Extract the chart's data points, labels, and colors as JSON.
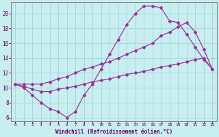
{
  "bg_color": "#c8eef0",
  "grid_color": "#a8d8dc",
  "line_color": "#993399",
  "marker_color": "#993399",
  "xlabel": "Windchill (Refroidissement éolien,°C)",
  "xlabel_color": "#660066",
  "tick_color": "#660066",
  "axis_color": "#888888",
  "xlim": [
    -0.5,
    23.5
  ],
  "ylim": [
    5.5,
    21.5
  ],
  "yticks": [
    6,
    8,
    10,
    12,
    14,
    16,
    18,
    20
  ],
  "xticks": [
    0,
    1,
    2,
    3,
    4,
    5,
    6,
    7,
    8,
    9,
    10,
    11,
    12,
    13,
    14,
    15,
    16,
    17,
    18,
    19,
    20,
    21,
    22,
    23
  ],
  "line1_x": [
    0,
    1,
    2,
    3,
    4,
    5,
    6,
    7,
    8,
    9,
    10,
    11,
    12,
    13,
    14,
    15,
    16,
    17,
    18,
    19,
    20,
    21,
    22,
    23
  ],
  "line1_y": [
    10.5,
    10.0,
    9.0,
    8.0,
    7.2,
    6.8,
    6.0,
    6.8,
    9.0,
    10.5,
    12.5,
    14.5,
    16.5,
    18.5,
    20.0,
    21.0,
    21.0,
    20.8,
    19.0,
    18.8,
    17.2,
    15.5,
    13.8,
    12.5
  ],
  "line2_x": [
    0,
    1,
    2,
    3,
    4,
    5,
    6,
    7,
    8,
    9,
    10,
    11,
    12,
    13,
    14,
    15,
    16,
    17,
    18,
    19,
    20,
    21,
    22,
    23
  ],
  "line2_y": [
    10.5,
    10.5,
    10.5,
    10.5,
    10.8,
    11.2,
    11.5,
    12.0,
    12.5,
    12.8,
    13.2,
    13.5,
    14.0,
    14.5,
    15.0,
    15.5,
    16.0,
    17.0,
    17.5,
    18.2,
    18.8,
    17.5,
    15.2,
    12.5
  ],
  "line3_x": [
    0,
    1,
    2,
    3,
    4,
    5,
    6,
    7,
    8,
    9,
    10,
    11,
    12,
    13,
    14,
    15,
    16,
    17,
    18,
    19,
    20,
    21,
    22,
    23
  ],
  "line3_y": [
    10.5,
    10.2,
    9.8,
    9.5,
    9.5,
    9.8,
    10.0,
    10.2,
    10.5,
    10.8,
    11.0,
    11.2,
    11.5,
    11.8,
    12.0,
    12.2,
    12.5,
    12.8,
    13.0,
    13.2,
    13.5,
    13.8,
    14.0,
    12.5
  ]
}
